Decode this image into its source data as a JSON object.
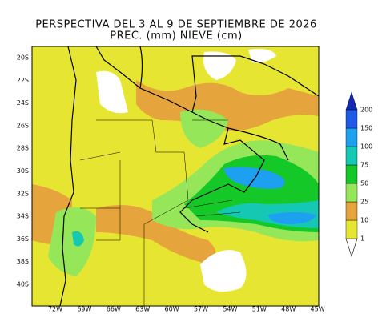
{
  "title": [
    "PERSPECTIVA DEL 3 AL 9 DE SEPTIEMBRE DE 2026",
    "PREC. (mm) NIEVE (cm)"
  ],
  "latitude_labels": [
    "20S",
    "22S",
    "24S",
    "26S",
    "28S",
    "30S",
    "32S",
    "34S",
    "36S",
    "38S",
    "40S"
  ],
  "longitude_labels": [
    "72W",
    "69W",
    "66W",
    "63W",
    "60W",
    "57W",
    "54W",
    "51W",
    "48W",
    "45W"
  ],
  "legend": {
    "levels": [
      1,
      10,
      25,
      50,
      75,
      100,
      150,
      200
    ],
    "colors": [
      "#ffffff",
      "#e6e632",
      "#e6a53c",
      "#96e65a",
      "#14c828",
      "#14c8b4",
      "#1ea0f0",
      "#1e5ae6",
      "#1428b4"
    ]
  }
}
